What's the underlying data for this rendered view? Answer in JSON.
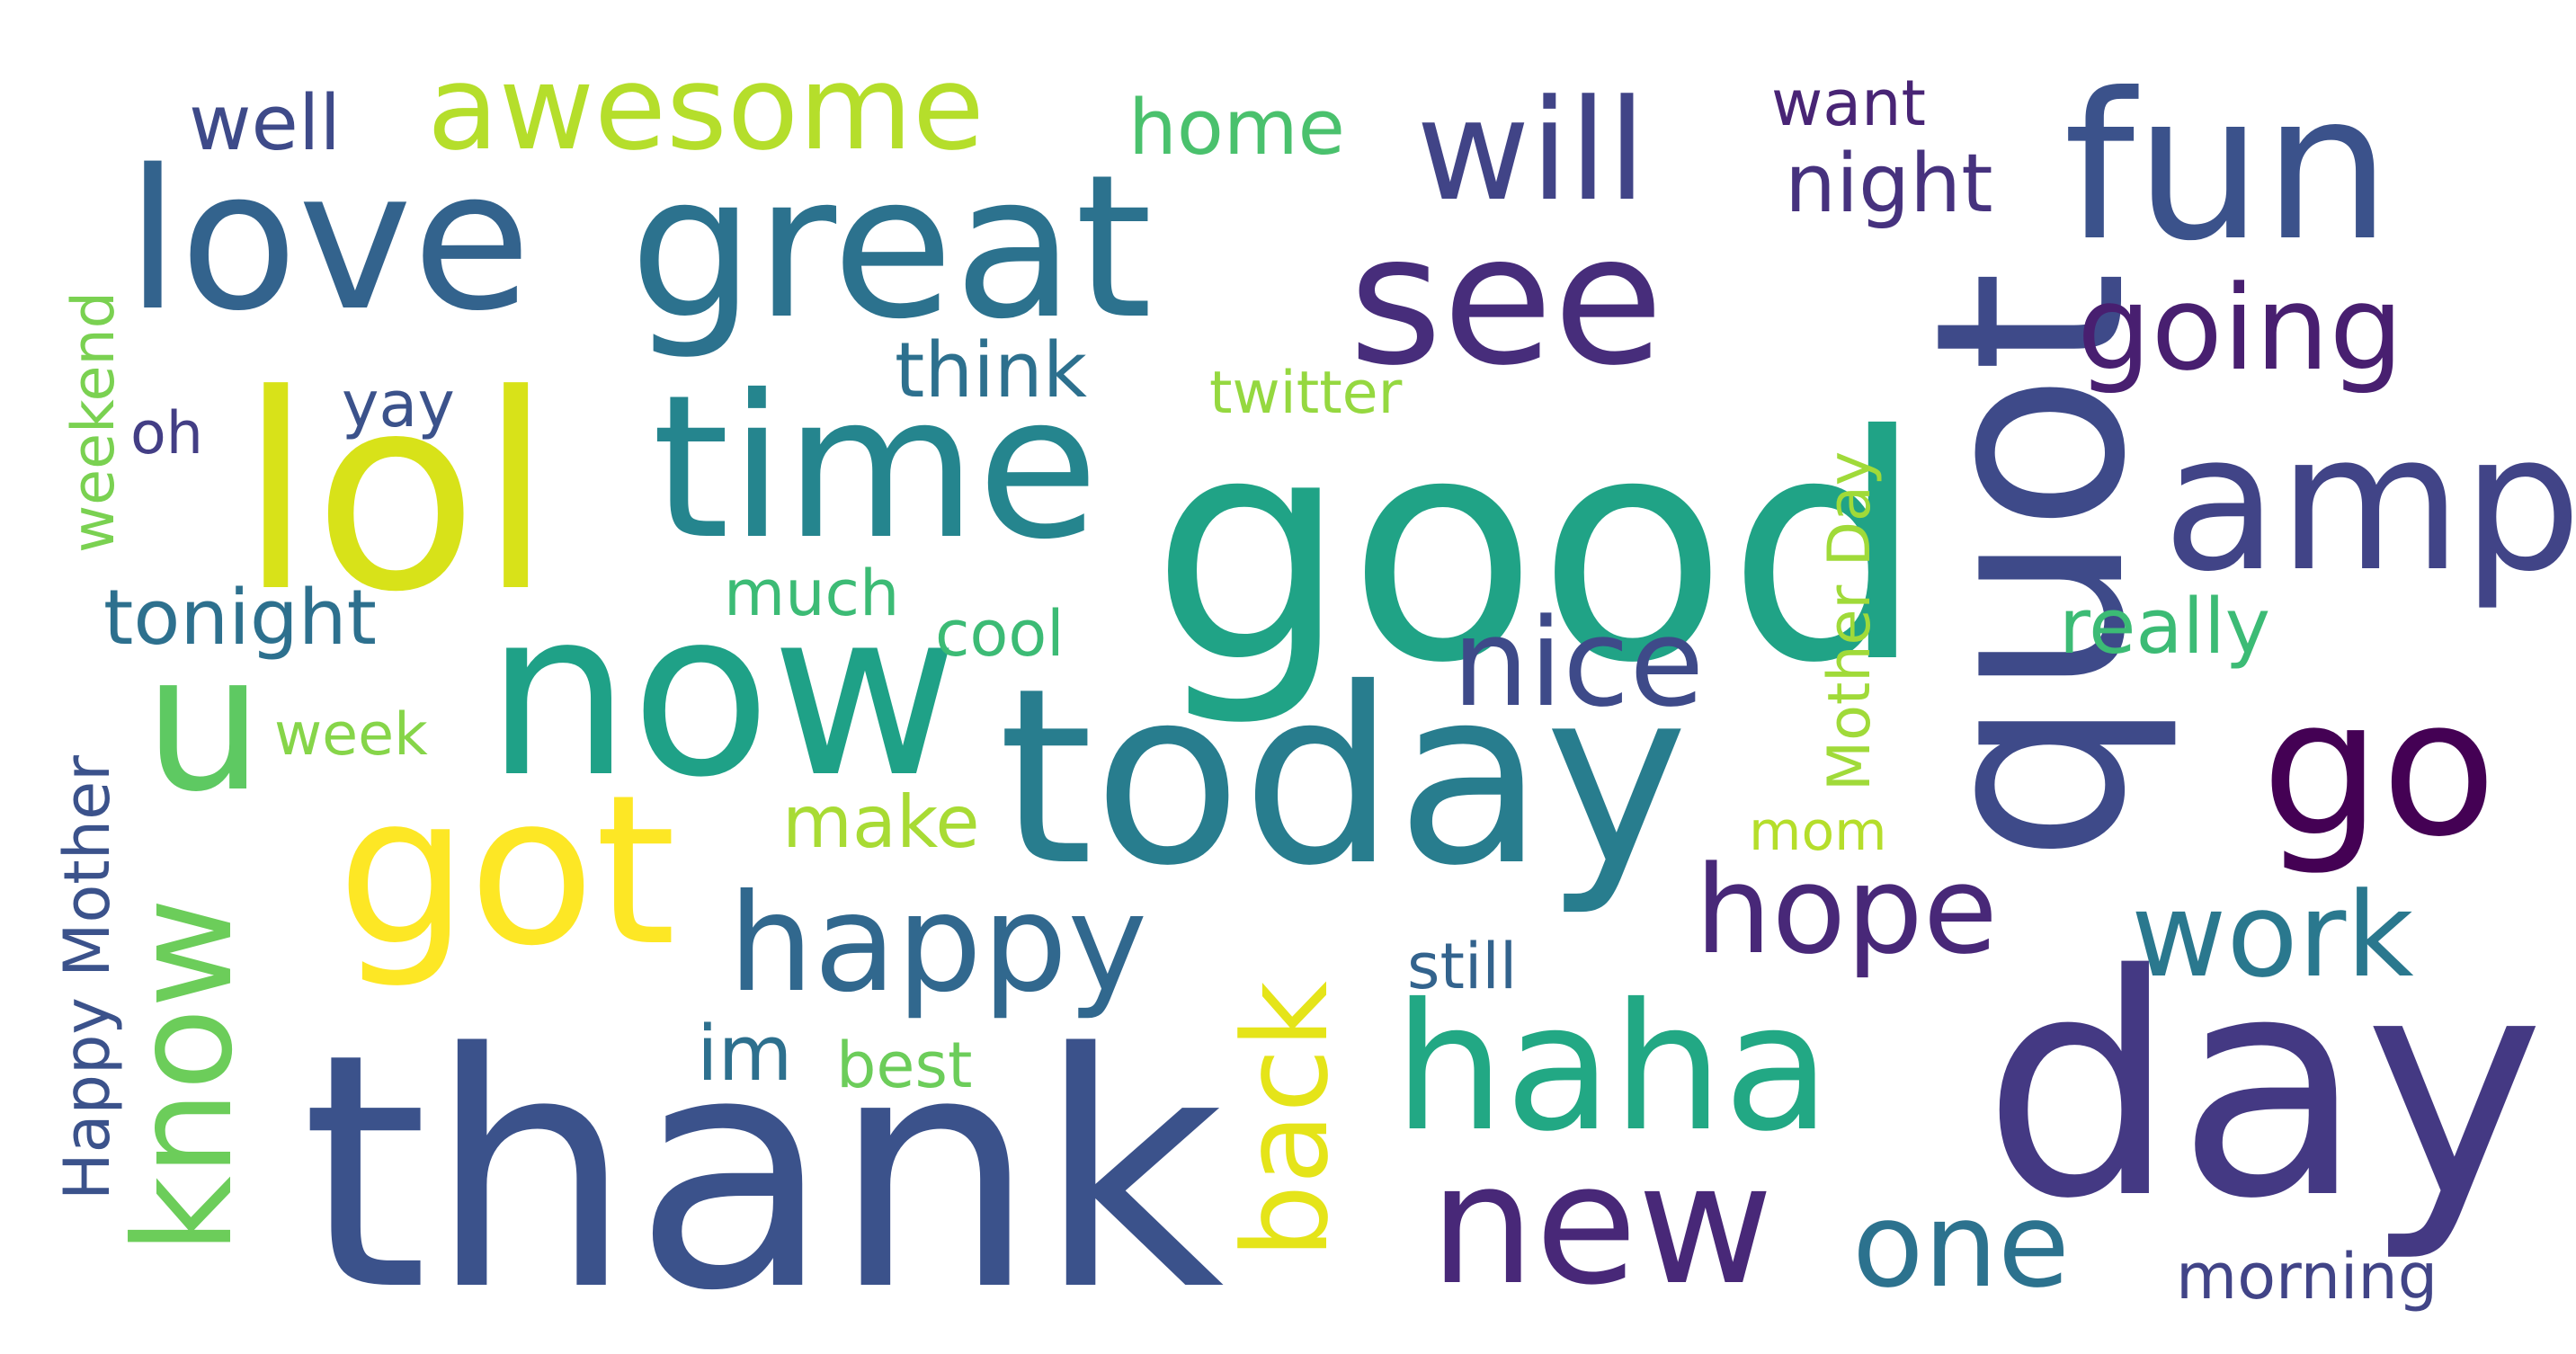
{
  "words": [
    {
      "text": "thank",
      "color": "#3b528b"
    },
    {
      "text": "day",
      "color": "#443983"
    },
    {
      "text": "good",
      "color": "#20a386"
    },
    {
      "text": "today",
      "color": "#287d8e"
    },
    {
      "text": "lol",
      "color": "#d8e219"
    },
    {
      "text": "quot",
      "color": "#3e4a89"
    },
    {
      "text": "now",
      "color": "#1fa187"
    },
    {
      "text": "time",
      "color": "#25858e"
    },
    {
      "text": "great",
      "color": "#2c728e"
    },
    {
      "text": "love",
      "color": "#33638d"
    },
    {
      "text": "got",
      "color": "#fde725"
    },
    {
      "text": "haha",
      "color": "#22a884"
    },
    {
      "text": "new",
      "color": "#482878"
    },
    {
      "text": "fun",
      "color": "#3b528b"
    },
    {
      "text": "amp",
      "color": "#414487"
    },
    {
      "text": "go",
      "color": "#440154"
    },
    {
      "text": "see",
      "color": "#472d7b"
    },
    {
      "text": "u",
      "color": "#5ec962"
    },
    {
      "text": "happy",
      "color": "#31688e"
    },
    {
      "text": "know",
      "color": "#6ccd5a"
    },
    {
      "text": "back",
      "color": "#e5e419"
    },
    {
      "text": "will",
      "color": "#414487"
    },
    {
      "text": "hope",
      "color": "#482878"
    },
    {
      "text": "work",
      "color": "#2a788e"
    },
    {
      "text": "one",
      "color": "#2c728e"
    },
    {
      "text": "nice",
      "color": "#3e4a89"
    },
    {
      "text": "awesome",
      "color": "#b5de2b"
    },
    {
      "text": "going",
      "color": "#481f70"
    },
    {
      "text": "night",
      "color": "#46327e"
    },
    {
      "text": "home",
      "color": "#4ac16d"
    },
    {
      "text": "well",
      "color": "#3e4a89"
    },
    {
      "text": "want",
      "color": "#482475"
    },
    {
      "text": "think",
      "color": "#2d708e"
    },
    {
      "text": "twitter",
      "color": "#95d840"
    },
    {
      "text": "yay",
      "color": "#3b528b"
    },
    {
      "text": "oh",
      "color": "#433e85"
    },
    {
      "text": "weekend",
      "color": "#7ad151"
    },
    {
      "text": "tonight",
      "color": "#2d708e"
    },
    {
      "text": "much",
      "color": "#3cbb75"
    },
    {
      "text": "cool",
      "color": "#3cbb75"
    },
    {
      "text": "really",
      "color": "#3cbb75"
    },
    {
      "text": "Mother Day",
      "color": "#a0da39"
    },
    {
      "text": "week",
      "color": "#86d549"
    },
    {
      "text": "make",
      "color": "#a8db34"
    },
    {
      "text": "mom",
      "color": "#b5de2b"
    },
    {
      "text": "Happy Mother",
      "color": "#3b528b"
    },
    {
      "text": "im",
      "color": "#2d708e"
    },
    {
      "text": "best",
      "color": "#6ccd5a"
    },
    {
      "text": "still",
      "color": "#33638d"
    },
    {
      "text": "morning",
      "color": "#414487"
    }
  ]
}
